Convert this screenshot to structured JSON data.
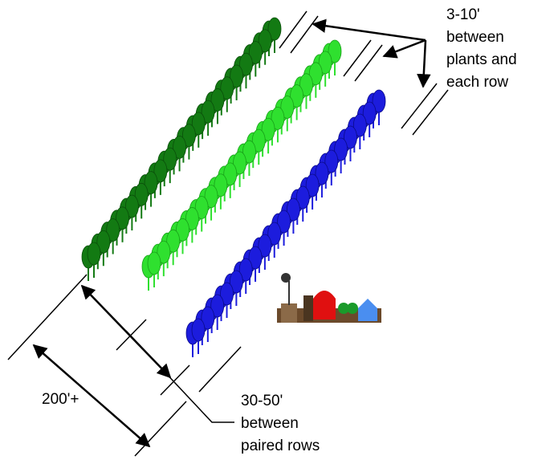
{
  "labels": {
    "plant_spacing": {
      "lines": [
        "3-10'",
        "between",
        "plants and",
        "each row"
      ]
    },
    "field_width": "200'+",
    "row_spacing": {
      "lines": [
        "30-50'",
        "between",
        "paired rows"
      ]
    }
  }
}
